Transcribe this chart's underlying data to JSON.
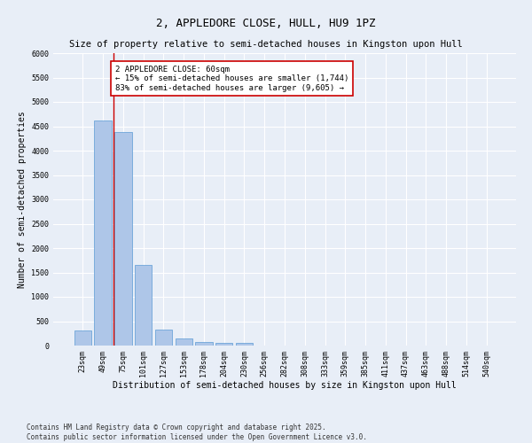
{
  "title": "2, APPLEDORE CLOSE, HULL, HU9 1PZ",
  "subtitle": "Size of property relative to semi-detached houses in Kingston upon Hull",
  "xlabel": "Distribution of semi-detached houses by size in Kingston upon Hull",
  "ylabel": "Number of semi-detached properties",
  "categories": [
    "23sqm",
    "49sqm",
    "75sqm",
    "101sqm",
    "127sqm",
    "153sqm",
    "178sqm",
    "204sqm",
    "230sqm",
    "256sqm",
    "282sqm",
    "308sqm",
    "333sqm",
    "359sqm",
    "385sqm",
    "411sqm",
    "437sqm",
    "463sqm",
    "488sqm",
    "514sqm",
    "540sqm"
  ],
  "values": [
    310,
    4620,
    4380,
    1650,
    330,
    145,
    80,
    50,
    55,
    0,
    0,
    0,
    0,
    0,
    0,
    0,
    0,
    0,
    0,
    0,
    0
  ],
  "bar_color": "#aec6e8",
  "bar_edge_color": "#5b9bd5",
  "vline_x_index": 1.5,
  "vline_color": "#cc0000",
  "annotation_text": "2 APPLEDORE CLOSE: 60sqm\n← 15% of semi-detached houses are smaller (1,744)\n83% of semi-detached houses are larger (9,605) →",
  "annotation_box_color": "#ffffff",
  "annotation_box_edge_color": "#cc0000",
  "ylim": [
    0,
    6000
  ],
  "yticks": [
    0,
    500,
    1000,
    1500,
    2000,
    2500,
    3000,
    3500,
    4000,
    4500,
    5000,
    5500,
    6000
  ],
  "background_color": "#e8eef7",
  "plot_bg_color": "#e8eef7",
  "footer_text": "Contains HM Land Registry data © Crown copyright and database right 2025.\nContains public sector information licensed under the Open Government Licence v3.0.",
  "title_fontsize": 9,
  "subtitle_fontsize": 7.5,
  "axis_label_fontsize": 7,
  "tick_fontsize": 6,
  "annotation_fontsize": 6.5,
  "footer_fontsize": 5.5
}
